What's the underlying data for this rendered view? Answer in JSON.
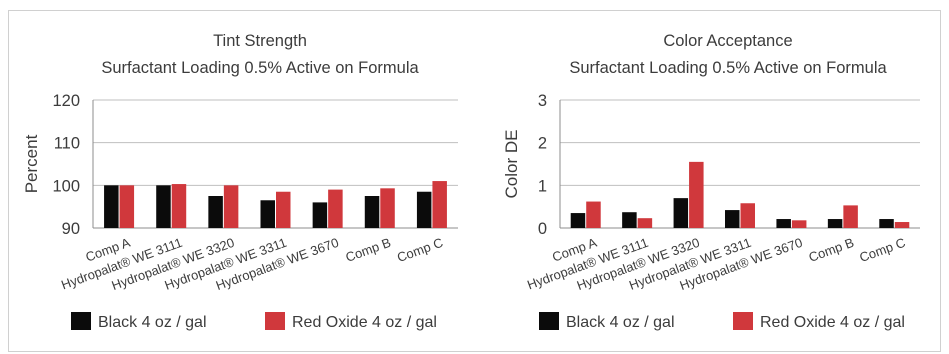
{
  "colors": {
    "black_series": "#0b0b0b",
    "red_series": "#d0383c",
    "grid": "#bfbfbf",
    "text": "#3c3c3c"
  },
  "chart_data": [
    {
      "type": "bar",
      "title": "Tint Strength",
      "subtitle": "Surfactant Loading 0.5% Active on Formula",
      "ylabel": "Percent",
      "ylim": [
        90,
        120
      ],
      "yticks": [
        "90",
        "100",
        "110",
        "120"
      ],
      "grid": true,
      "legend_position": "bottom",
      "categories": [
        "Comp A",
        "Hydropalat® WE 3111",
        "Hydropalat® WE 3320",
        "Hydropalat® WE 3311",
        "Hydropalat® WE 3670",
        "Comp B",
        "Comp C"
      ],
      "series": [
        {
          "name": "Black 4 oz / gal",
          "values": [
            100,
            100,
            97.5,
            96.5,
            96,
            97.5,
            98.5
          ]
        },
        {
          "name": "Red Oxide 4 oz / gal",
          "values": [
            100,
            100.3,
            100,
            98.5,
            99,
            99.3,
            101
          ]
        }
      ]
    },
    {
      "type": "bar",
      "title": "Color Acceptance",
      "subtitle": "Surfactant Loading 0.5% Active on Formula",
      "ylabel": "Color DE",
      "ylim": [
        0,
        3
      ],
      "yticks": [
        "0",
        "1",
        "2",
        "3"
      ],
      "grid": true,
      "legend_position": "bottom",
      "categories": [
        "Comp A",
        "Hydropalat® WE 3111",
        "Hydropalat® WE 3320",
        "Hydropalat® WE 3311",
        "Hydropalat® WE 3670",
        "Comp B",
        "Comp C"
      ],
      "series": [
        {
          "name": "Black 4 oz / gal",
          "values": [
            0.35,
            0.37,
            0.7,
            0.42,
            0.21,
            0.21,
            0.21
          ]
        },
        {
          "name": "Red Oxide 4 oz / gal",
          "values": [
            0.62,
            0.23,
            1.55,
            0.58,
            0.18,
            0.53,
            0.14
          ]
        }
      ]
    }
  ]
}
